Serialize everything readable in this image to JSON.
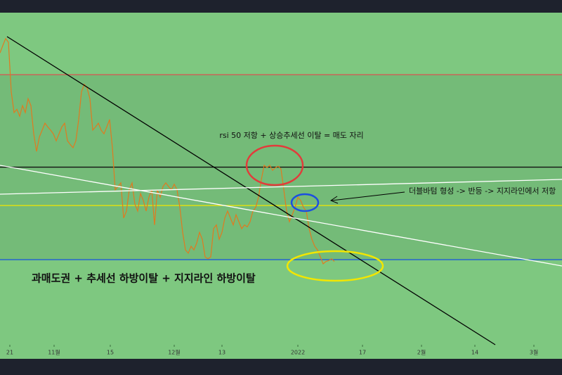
{
  "chart_data": {
    "type": "line",
    "x": [
      0,
      1,
      2,
      3,
      4,
      5,
      6,
      7,
      8,
      9,
      10,
      11,
      12,
      13,
      14,
      15,
      16,
      17,
      18,
      19,
      20,
      21,
      22,
      23,
      24,
      25,
      26,
      27,
      28,
      29,
      30,
      31,
      32,
      33,
      34,
      35,
      36,
      37,
      38,
      39,
      40,
      41,
      42,
      43,
      44,
      45,
      46,
      47,
      48,
      49,
      50,
      51,
      52,
      53,
      54,
      55,
      56,
      57,
      58,
      59,
      60,
      61,
      62,
      63,
      64,
      65,
      66,
      67,
      68,
      69,
      70,
      71,
      72,
      73,
      74,
      75,
      76,
      77,
      78,
      79,
      80,
      81,
      82,
      83,
      84,
      85,
      86,
      87,
      88,
      89,
      90,
      91,
      92,
      93,
      94,
      95,
      96,
      97,
      98,
      99,
      100,
      101,
      102,
      103,
      104,
      105,
      106,
      107,
      108,
      109,
      110,
      111,
      112,
      113,
      114,
      115,
      116,
      117,
      118,
      119
    ],
    "series": [
      {
        "color": "#e07a1f",
        "values": [
          74.7,
          76.3,
          77.8,
          77.0,
          66.3,
          61.8,
          62.5,
          61.0,
          63.3,
          61.8,
          64.8,
          63.3,
          57.2,
          53.4,
          56.5,
          58.0,
          59.5,
          58.7,
          58.0,
          57.2,
          55.7,
          57.2,
          58.7,
          59.5,
          55.7,
          54.9,
          54.2,
          55.7,
          60.3,
          66.3,
          67.9,
          67.1,
          64.8,
          58.0,
          58.7,
          59.5,
          58.0,
          57.2,
          58.7,
          60.3,
          54.2,
          45.1,
          45.8,
          46.6,
          39.0,
          40.5,
          45.1,
          46.6,
          42.0,
          40.5,
          44.3,
          42.8,
          40.5,
          43.5,
          45.1,
          37.5,
          45.1,
          43.5,
          45.8,
          46.6,
          45.8,
          45.1,
          46.3,
          45.1,
          41.3,
          35.9,
          32.1,
          31.4,
          32.9,
          32.1,
          33.6,
          35.9,
          34.4,
          30.6,
          30.2,
          30.6,
          36.7,
          37.5,
          34.4,
          35.9,
          39.0,
          40.5,
          39.0,
          37.5,
          39.7,
          38.2,
          36.7,
          37.5,
          37.1,
          38.2,
          40.5,
          41.3,
          43.5,
          47.3,
          50.4,
          49.9,
          50.4,
          49.3,
          49.9,
          50.2,
          49.6,
          45.1,
          40.5,
          38.2,
          39.7,
          41.3,
          43.5,
          42.8,
          41.3,
          40.5,
          36.7,
          34.4,
          32.9,
          32.1,
          30.6,
          29.1,
          29.6,
          29.8,
          30.2,
          29.6
        ]
      }
    ],
    "levels": [
      {
        "value": 70,
        "color": "#d9534f"
      },
      {
        "value": 50,
        "color": "#111111"
      },
      {
        "value": 41.7,
        "color": "#f2e600"
      },
      {
        "value": 30,
        "color": "#1e5bd6"
      }
    ],
    "xlim": [
      0,
      200
    ],
    "ylim": [
      11.6,
      83.4
    ],
    "xticks": [
      {
        "value": 3.5,
        "label": "21"
      },
      {
        "value": 19.25,
        "label": "11월"
      },
      {
        "value": 39.25,
        "label": "15"
      },
      {
        "value": 62,
        "label": "12월"
      },
      {
        "value": 79,
        "label": "13"
      },
      {
        "value": 106,
        "label": "2022"
      },
      {
        "value": 129,
        "label": "17"
      },
      {
        "value": 150,
        "label": "2월"
      },
      {
        "value": 169,
        "label": "14"
      },
      {
        "value": 190,
        "label": "3월"
      }
    ],
    "annotations": [
      "rsi 50 저항 + 상승추세선 이탈 = 매도 자리",
      "더블바텀 형성 -> 반등 -> 지지라인에서 저항",
      "과매도권 + 추세선 하방이탈 + 지지라인 하방이탈"
    ]
  }
}
